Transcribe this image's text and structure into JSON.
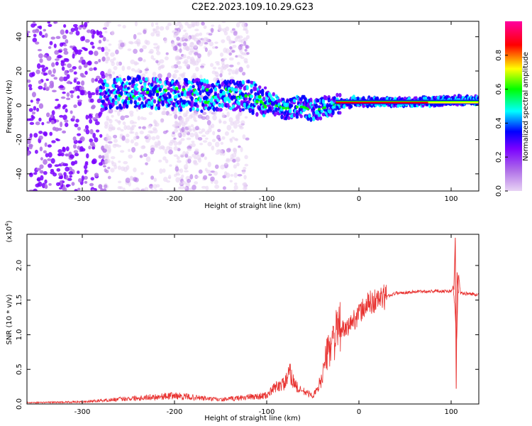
{
  "figure_title": "C2E2.2023.109.10.29.G23",
  "chart_data": [
    {
      "type": "heatmap",
      "title": "",
      "xlabel": "Height of straight line (km)",
      "ylabel": "Frequency (Hz)",
      "xlim": [
        -360,
        130
      ],
      "ylim": [
        -50,
        49
      ],
      "x_ticks": [
        -300,
        -200,
        -100,
        0,
        100
      ],
      "y_ticks": [
        -40,
        -20,
        0,
        20,
        40
      ],
      "grid": false,
      "colorbar": {
        "label": "Normalized spectral amplitude",
        "range": [
          0,
          1
        ],
        "ticks": [
          0.0,
          0.2,
          0.4,
          0.6,
          0.8
        ],
        "colormap": "rainbow",
        "colors": [
          "#e8d4f4",
          "#b070e8",
          "#7a00ff",
          "#0000ff",
          "#00ffff",
          "#00ff00",
          "#ffff00",
          "#ff0000",
          "#ff00a0"
        ]
      },
      "ridge": {
        "x": [
          -280,
          -260,
          -240,
          -220,
          -200,
          -180,
          -160,
          -140,
          -120,
          -100,
          -90,
          -80,
          -70,
          -60,
          -50,
          -40,
          -30,
          -20,
          -10,
          -5,
          0,
          20,
          50,
          80,
          100,
          130
        ],
        "y": [
          6,
          7,
          8,
          7,
          6,
          6,
          5,
          6,
          5,
          2,
          0,
          -2,
          -1,
          -1,
          -3,
          -2,
          0,
          1,
          1,
          3,
          2,
          2,
          2,
          2,
          3,
          3
        ]
      }
    },
    {
      "type": "line",
      "title": "",
      "xlabel": "Height of straight line (km)",
      "ylabel": "SNR (10 * v/v)",
      "y_multiplier": "(x10^4)",
      "xlim": [
        -360,
        130
      ],
      "ylim": [
        0,
        24500
      ],
      "x_ticks": [
        -300,
        -200,
        -100,
        0,
        100
      ],
      "y_ticks": [
        0.0,
        0.5,
        1.0,
        1.5,
        2.0
      ],
      "y_tick_scale": 10000,
      "grid": false,
      "series": [
        {
          "color": "#e8312f",
          "x": [
            -360,
            -300,
            -250,
            -200,
            -150,
            -120,
            -100,
            -90,
            -80,
            -75,
            -70,
            -65,
            -60,
            -55,
            -50,
            -45,
            -40,
            -35,
            -30,
            -25,
            -20,
            -15,
            -10,
            0,
            10,
            20,
            30,
            40,
            60,
            80,
            100,
            102,
            104,
            106,
            108,
            110,
            120,
            130
          ],
          "y": [
            200,
            300,
            800,
            1200,
            600,
            1000,
            1200,
            2500,
            3000,
            4500,
            3000,
            2000,
            1800,
            1500,
            1200,
            2000,
            4000,
            7000,
            9000,
            10000,
            11000,
            10500,
            11500,
            13000,
            14500,
            15000,
            15500,
            16000,
            16200,
            16300,
            16300,
            17000,
            14000,
            9000,
            19000,
            16000,
            15900,
            15800
          ]
        }
      ]
    }
  ]
}
